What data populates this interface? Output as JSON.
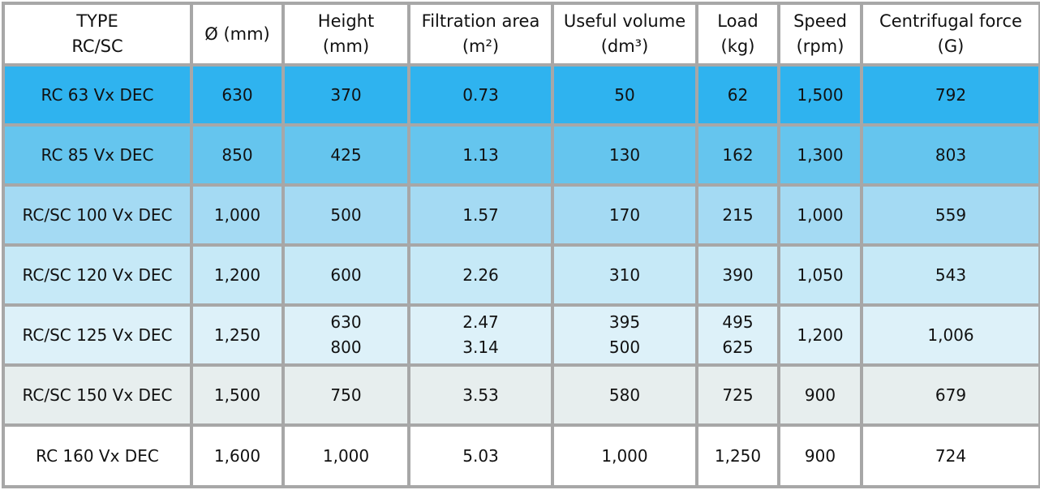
{
  "table": {
    "headers": [
      {
        "line1": "TYPE",
        "line2": "RC/SC"
      },
      {
        "line1": "Ø (mm)",
        "line2": ""
      },
      {
        "line1": "Height",
        "line2": "(mm)"
      },
      {
        "line1": "Filtration area",
        "line2": "(m²)"
      },
      {
        "line1": "Useful volume",
        "line2": "(dm³)"
      },
      {
        "line1": "Load",
        "line2": "(kg)"
      },
      {
        "line1": "Speed",
        "line2": "(rpm)"
      },
      {
        "line1": "Centrifugal force",
        "line2": "(G)"
      }
    ],
    "rows": [
      {
        "type": "RC 63 Vx DEC",
        "diameter": "630",
        "height": [
          "370"
        ],
        "filtration_area": [
          "0.73"
        ],
        "useful_volume": [
          "50"
        ],
        "load": [
          "62"
        ],
        "speed": "1,500",
        "centrifugal_force": "792"
      },
      {
        "type": "RC 85 Vx DEC",
        "diameter": "850",
        "height": [
          "425"
        ],
        "filtration_area": [
          "1.13"
        ],
        "useful_volume": [
          "130"
        ],
        "load": [
          "162"
        ],
        "speed": "1,300",
        "centrifugal_force": "803"
      },
      {
        "type": "RC/SC 100 Vx DEC",
        "diameter": "1,000",
        "height": [
          "500"
        ],
        "filtration_area": [
          "1.57"
        ],
        "useful_volume": [
          "170"
        ],
        "load": [
          "215"
        ],
        "speed": "1,000",
        "centrifugal_force": "559"
      },
      {
        "type": "RC/SC 120 Vx DEC",
        "diameter": "1,200",
        "height": [
          "600"
        ],
        "filtration_area": [
          "2.26"
        ],
        "useful_volume": [
          "310"
        ],
        "load": [
          "390"
        ],
        "speed": "1,050",
        "centrifugal_force": "543"
      },
      {
        "type": "RC/SC 125 Vx DEC",
        "diameter": "1,250",
        "height": [
          "630",
          "800"
        ],
        "filtration_area": [
          "2.47",
          "3.14"
        ],
        "useful_volume": [
          "395",
          "500"
        ],
        "load": [
          "495",
          "625"
        ],
        "speed": "1,200",
        "centrifugal_force": "1,006"
      },
      {
        "type": "RC/SC 150 Vx DEC",
        "diameter": "1,500",
        "height": [
          "750"
        ],
        "filtration_area": [
          "3.53"
        ],
        "useful_volume": [
          "580"
        ],
        "load": [
          "725"
        ],
        "speed": "900",
        "centrifugal_force": "679"
      },
      {
        "type": "RC 160 Vx DEC",
        "diameter": "1,600",
        "height": [
          "1,000"
        ],
        "filtration_area": [
          "5.03"
        ],
        "useful_volume": [
          "1,000"
        ],
        "load": [
          "1,250"
        ],
        "speed": "900",
        "centrifugal_force": "724"
      }
    ],
    "row_colors": [
      "#2fb3ef",
      "#65c5ee",
      "#a4daf3",
      "#c6e9f7",
      "#ddf1f9",
      "#e7eeee",
      "#ffffff"
    ],
    "border_color": "#a7a7a7"
  }
}
